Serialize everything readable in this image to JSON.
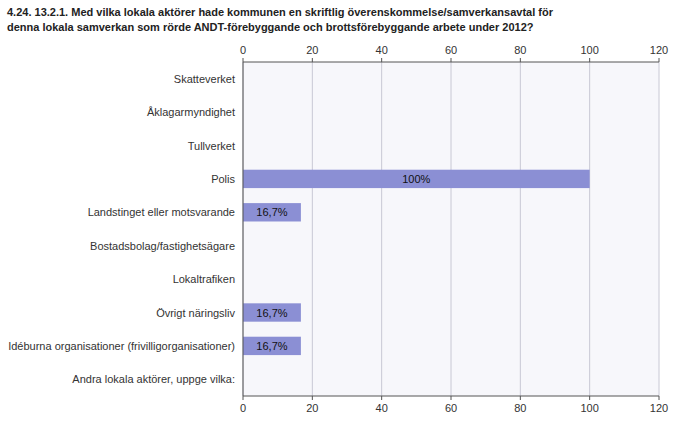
{
  "chart_data": {
    "type": "bar",
    "orientation": "horizontal",
    "title": "4.24. 13.2.1. Med vilka lokala aktörer hade kommunen en skriftlig överenskommelse/samverkansavtal för",
    "subtitle": "denna lokala samverkan som rörde ANDT-förebyggande och brottsförebyggande arbete under 2012?",
    "categories": [
      "Andra lokala aktörer, uppge vilka:",
      "Idéburna organisationer (frivilligorganisationer)",
      "Övrigt näringsliv",
      "Lokaltrafiken",
      "Bostadsbolag/fastighetsägare",
      "Landstinget eller motsvarande",
      "Polis",
      "Tullverket",
      "Åklagarmyndighet",
      "Skatteverket"
    ],
    "values": [
      0,
      16.7,
      16.7,
      0,
      0,
      16.7,
      100,
      0,
      0,
      0
    ],
    "value_labels": [
      null,
      "16,7%",
      "16,7%",
      null,
      null,
      "16,7%",
      "100%",
      null,
      null,
      null
    ],
    "data_labels": true,
    "color": "#8B8FD4",
    "xlim": [
      0,
      120
    ],
    "xticks": [
      0,
      20,
      40,
      60,
      80,
      100,
      120
    ],
    "grid": true
  }
}
